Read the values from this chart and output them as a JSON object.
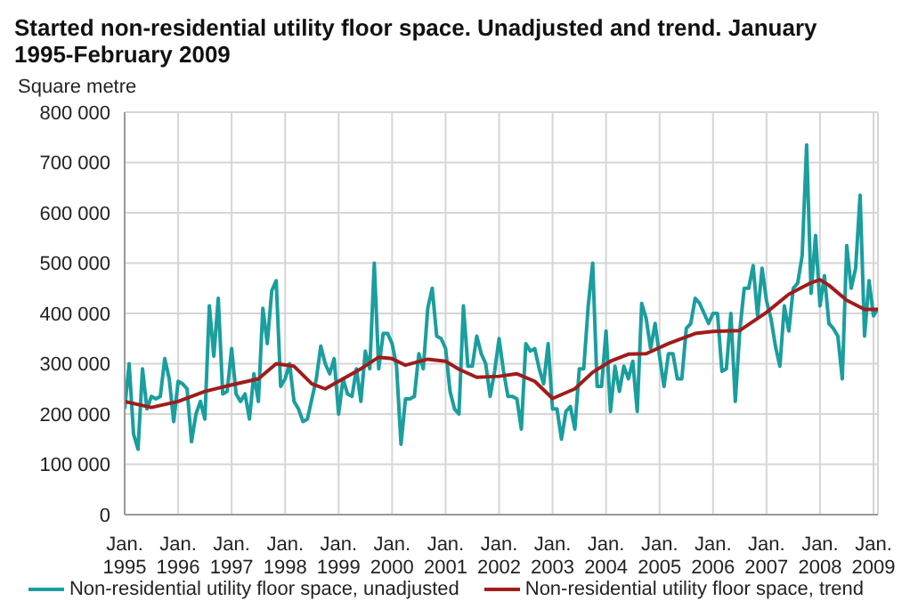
{
  "chart_data": {
    "type": "line",
    "title": "Started non-residential utility floor space. Unadjusted and trend. January 1995-February 2009",
    "ylabel": "Square metre",
    "xlim": [
      "1995-01",
      "2009-02"
    ],
    "xticks": [
      {
        "value": "1995-01",
        "label": "Jan. 1995"
      },
      {
        "value": "1996-01",
        "label": "Jan. 1996"
      },
      {
        "value": "1997-01",
        "label": "Jan. 1997"
      },
      {
        "value": "1998-01",
        "label": "Jan. 1998"
      },
      {
        "value": "1999-01",
        "label": "Jan. 1999"
      },
      {
        "value": "2000-01",
        "label": "Jan. 2000"
      },
      {
        "value": "2001-01",
        "label": "Jan. 2001"
      },
      {
        "value": "2002-01",
        "label": "Jan. 2002"
      },
      {
        "value": "2003-01",
        "label": "Jan. 2003"
      },
      {
        "value": "2004-01",
        "label": "Jan. 2004"
      },
      {
        "value": "2005-01",
        "label": "Jan. 2005"
      },
      {
        "value": "2006-01",
        "label": "Jan. 2006"
      },
      {
        "value": "2007-01",
        "label": "Jan. 2007"
      },
      {
        "value": "2008-01",
        "label": "Jan. 2008"
      },
      {
        "value": "2009-01",
        "label": "Jan. 2009"
      }
    ],
    "ylim": [
      0,
      800000
    ],
    "yticks": [
      0,
      {
        "value": 100000,
        "label": "100 000"
      },
      {
        "value": 200000,
        "label": "200 000"
      },
      {
        "value": 300000,
        "label": "300 000"
      },
      {
        "value": 400000,
        "label": "400 000"
      },
      {
        "value": 500000,
        "label": "500 000"
      },
      {
        "value": 600000,
        "label": "600 000"
      },
      {
        "value": 700000,
        "label": "700 000"
      },
      {
        "value": 800000,
        "label": "800 000"
      }
    ],
    "grid": true,
    "legend": "bottom",
    "marker": "none",
    "line_style": "solid",
    "series": [
      {
        "name": "Non-residential utility floor space, unadjusted",
        "color": "#1a9e9e",
        "x": [
          "1995-01",
          "1995-02",
          "1995-03",
          "1995-04",
          "1995-05",
          "1995-06",
          "1995-07",
          "1995-08",
          "1995-09",
          "1995-10",
          "1995-11",
          "1995-12",
          "1996-01",
          "1996-02",
          "1996-03",
          "1996-04",
          "1996-05",
          "1996-06",
          "1996-07",
          "1996-08",
          "1996-09",
          "1996-10",
          "1996-11",
          "1996-12",
          "1997-01",
          "1997-02",
          "1997-03",
          "1997-04",
          "1997-05",
          "1997-06",
          "1997-07",
          "1997-08",
          "1997-09",
          "1997-10",
          "1997-11",
          "1997-12",
          "1998-01",
          "1998-02",
          "1998-03",
          "1998-04",
          "1998-05",
          "1998-06",
          "1998-07",
          "1998-08",
          "1998-09",
          "1998-10",
          "1998-11",
          "1998-12",
          "1999-01",
          "1999-02",
          "1999-03",
          "1999-04",
          "1999-05",
          "1999-06",
          "1999-07",
          "1999-08",
          "1999-09",
          "1999-10",
          "1999-11",
          "1999-12",
          "2000-01",
          "2000-02",
          "2000-03",
          "2000-04",
          "2000-05",
          "2000-06",
          "2000-07",
          "2000-08",
          "2000-09",
          "2000-10",
          "2000-11",
          "2000-12",
          "2001-01",
          "2001-02",
          "2001-03",
          "2001-04",
          "2001-05",
          "2001-06",
          "2001-07",
          "2001-08",
          "2001-09",
          "2001-10",
          "2001-11",
          "2001-12",
          "2002-01",
          "2002-02",
          "2002-03",
          "2002-04",
          "2002-05",
          "2002-06",
          "2002-07",
          "2002-08",
          "2002-09",
          "2002-10",
          "2002-11",
          "2002-12",
          "2003-01",
          "2003-02",
          "2003-03",
          "2003-04",
          "2003-05",
          "2003-06",
          "2003-07",
          "2003-08",
          "2003-09",
          "2003-10",
          "2003-11",
          "2003-12",
          "2004-01",
          "2004-02",
          "2004-03",
          "2004-04",
          "2004-05",
          "2004-06",
          "2004-07",
          "2004-08",
          "2004-09",
          "2004-10",
          "2004-11",
          "2004-12",
          "2005-01",
          "2005-02",
          "2005-03",
          "2005-04",
          "2005-05",
          "2005-06",
          "2005-07",
          "2005-08",
          "2005-09",
          "2005-10",
          "2005-11",
          "2005-12",
          "2006-01",
          "2006-02",
          "2006-03",
          "2006-04",
          "2006-05",
          "2006-06",
          "2006-07",
          "2006-08",
          "2006-09",
          "2006-10",
          "2006-11",
          "2006-12",
          "2007-01",
          "2007-02",
          "2007-03",
          "2007-04",
          "2007-05",
          "2007-06",
          "2007-07",
          "2007-08",
          "2007-09",
          "2007-10",
          "2007-11",
          "2007-12",
          "2008-01",
          "2008-02",
          "2008-03",
          "2008-04",
          "2008-05",
          "2008-06",
          "2008-07",
          "2008-08",
          "2008-09",
          "2008-10",
          "2008-11",
          "2008-12",
          "2009-01",
          "2009-02"
        ],
        "values": [
          210000,
          300000,
          160000,
          130000,
          290000,
          210000,
          235000,
          230000,
          235000,
          310000,
          270000,
          185000,
          265000,
          260000,
          250000,
          145000,
          200000,
          225000,
          190000,
          415000,
          315000,
          430000,
          240000,
          245000,
          330000,
          240000,
          225000,
          240000,
          190000,
          280000,
          225000,
          410000,
          340000,
          445000,
          465000,
          255000,
          270000,
          300000,
          225000,
          210000,
          185000,
          190000,
          230000,
          270000,
          335000,
          300000,
          280000,
          310000,
          200000,
          270000,
          240000,
          235000,
          290000,
          225000,
          325000,
          290000,
          500000,
          290000,
          360000,
          360000,
          340000,
          295000,
          140000,
          230000,
          230000,
          235000,
          320000,
          290000,
          410000,
          450000,
          355000,
          350000,
          330000,
          245000,
          210000,
          200000,
          415000,
          295000,
          295000,
          355000,
          320000,
          300000,
          235000,
          285000,
          350000,
          285000,
          235000,
          235000,
          230000,
          170000,
          340000,
          325000,
          330000,
          290000,
          260000,
          340000,
          210000,
          210000,
          150000,
          205000,
          215000,
          170000,
          290000,
          290000,
          415000,
          500000,
          255000,
          255000,
          365000,
          205000,
          295000,
          245000,
          295000,
          270000,
          305000,
          205000,
          420000,
          390000,
          330000,
          380000,
          315000,
          255000,
          320000,
          320000,
          270000,
          270000,
          370000,
          380000,
          430000,
          420000,
          400000,
          380000,
          400000,
          400000,
          285000,
          290000,
          400000,
          225000,
          365000,
          450000,
          450000,
          495000,
          395000,
          490000,
          425000,
          390000,
          335000,
          295000,
          415000,
          365000,
          450000,
          460000,
          515000,
          735000,
          440000,
          555000,
          415000,
          475000,
          380000,
          370000,
          355000,
          270000,
          535000,
          450000,
          490000,
          635000,
          355000,
          465000,
          395000,
          410000
        ]
      },
      {
        "name": "Non-residential utility floor space, trend",
        "color": "#a01c1c",
        "x": [
          "1995-01",
          "1995-07",
          "1996-01",
          "1996-07",
          "1997-01",
          "1997-07",
          "1997-11",
          "1998-03",
          "1998-07",
          "1998-10",
          "1999-01",
          "1999-06",
          "1999-10",
          "2000-01",
          "2000-04",
          "2000-09",
          "2001-01",
          "2001-04",
          "2001-08",
          "2002-01",
          "2002-05",
          "2002-09",
          "2003-01",
          "2003-06",
          "2003-10",
          "2004-02",
          "2004-06",
          "2004-10",
          "2005-03",
          "2005-09",
          "2006-01",
          "2006-07",
          "2007-01",
          "2007-06",
          "2007-11",
          "2008-01",
          "2008-03",
          "2008-07",
          "2008-11",
          "2009-02"
        ],
        "values": [
          225000,
          213000,
          225000,
          245000,
          258000,
          270000,
          300000,
          295000,
          260000,
          250000,
          265000,
          290000,
          313000,
          310000,
          297000,
          309000,
          305000,
          289000,
          273000,
          275000,
          280000,
          265000,
          231000,
          250000,
          283000,
          305000,
          319000,
          320000,
          340000,
          360000,
          364000,
          366000,
          402000,
          438000,
          461000,
          467000,
          456000,
          426000,
          408000,
          408000
        ]
      }
    ]
  }
}
